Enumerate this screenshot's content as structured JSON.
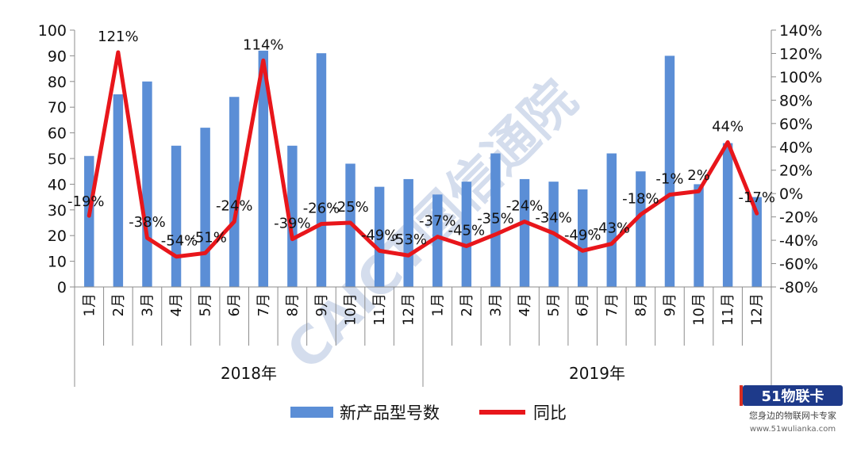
{
  "chart_data": {
    "type": "bar",
    "years": [
      "2018年",
      "2019年"
    ],
    "categories": [
      "1月",
      "2月",
      "3月",
      "4月",
      "5月",
      "6月",
      "7月",
      "8月",
      "9月",
      "10月",
      "11月",
      "12月",
      "1月",
      "2月",
      "3月",
      "4月",
      "5月",
      "6月",
      "7月",
      "8月",
      "9月",
      "10月",
      "11月",
      "12月"
    ],
    "series": [
      {
        "name": "新产品型号数",
        "type": "bar",
        "axis": "left",
        "color": "#5B8ED6",
        "values": [
          51,
          75,
          80,
          55,
          62,
          74,
          92,
          55,
          91,
          48,
          39,
          42,
          36,
          41,
          52,
          42,
          41,
          38,
          52,
          45,
          90,
          40,
          56,
          35
        ]
      },
      {
        "name": "同比",
        "type": "line",
        "axis": "right",
        "color": "#E8161B",
        "values": [
          -19,
          121,
          -38,
          -54,
          -51,
          -24,
          114,
          -39,
          -26,
          -25,
          -49,
          -53,
          -37,
          -45,
          -35,
          -24,
          -34,
          -49,
          -43,
          -18,
          -1,
          2,
          44,
          -17
        ],
        "labels": [
          "-19%",
          "121%",
          "-38%",
          "-54%",
          "-51%",
          "-24%",
          "114%",
          "-39%",
          "-26%",
          "-25%",
          "-49%",
          "-53%",
          "-37%",
          "-45%",
          "-35%",
          "-24%",
          "-34%",
          "-49%",
          "-43%",
          "-18%",
          "-1%",
          "2%",
          "44%",
          "-17%"
        ]
      }
    ],
    "y_left": {
      "min": 0,
      "max": 100,
      "step": 10,
      "ticks": [
        "0",
        "10",
        "20",
        "30",
        "40",
        "50",
        "60",
        "70",
        "80",
        "90",
        "100"
      ]
    },
    "y_right": {
      "min": -80,
      "max": 140,
      "step": 20,
      "ticks": [
        "-80%",
        "-60%",
        "-40%",
        "-20%",
        "0%",
        "20%",
        "40%",
        "60%",
        "80%",
        "100%",
        "120%",
        "140%"
      ]
    },
    "grid": false,
    "legend": "bottom-center"
  },
  "watermark": {
    "text": "CAICT国信通院",
    "color": "#9FB4D6"
  },
  "logo": {
    "brand_mark": "51物联卡",
    "tagline": "您身边的物联网卡专家",
    "url": "www.51wulianka.com",
    "colors": [
      "#1E3A8A",
      "#D92D20"
    ]
  }
}
